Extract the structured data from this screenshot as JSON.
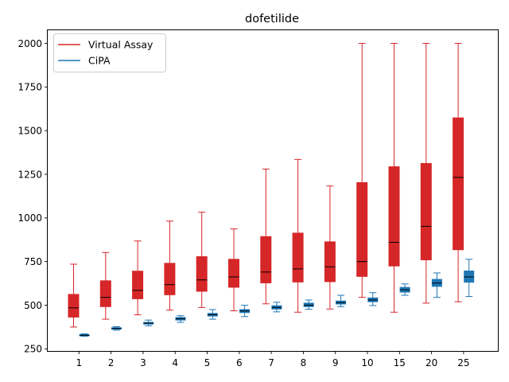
{
  "chart_data": {
    "type": "boxplot",
    "title": "dofetilide",
    "xlabel": "",
    "ylabel": "",
    "categories": [
      "1",
      "2",
      "3",
      "4",
      "5",
      "6",
      "7",
      "8",
      "9",
      "10",
      "15",
      "20",
      "25"
    ],
    "ylim": [
      238,
      2075
    ],
    "yticks": [
      250,
      500,
      750,
      1000,
      1250,
      1500,
      1750,
      2000
    ],
    "grid": false,
    "legend_position": "top-left",
    "series": [
      {
        "name": "Virtual Assay",
        "color": "#d62728",
        "boxes": [
          {
            "min": 375,
            "q1": 432,
            "median": 485,
            "q3": 562,
            "max": 735
          },
          {
            "min": 420,
            "q1": 492,
            "median": 545,
            "q3": 640,
            "max": 802
          },
          {
            "min": 445,
            "q1": 537,
            "median": 585,
            "q3": 695,
            "max": 868
          },
          {
            "min": 472,
            "q1": 560,
            "median": 618,
            "q3": 740,
            "max": 982
          },
          {
            "min": 487,
            "q1": 580,
            "median": 645,
            "q3": 778,
            "max": 1033
          },
          {
            "min": 468,
            "q1": 603,
            "median": 662,
            "q3": 763,
            "max": 937
          },
          {
            "min": 508,
            "q1": 628,
            "median": 690,
            "q3": 893,
            "max": 1280
          },
          {
            "min": 460,
            "q1": 633,
            "median": 708,
            "q3": 913,
            "max": 1335
          },
          {
            "min": 478,
            "q1": 635,
            "median": 720,
            "q3": 863,
            "max": 1183
          },
          {
            "min": 545,
            "q1": 665,
            "median": 750,
            "q3": 1202,
            "max": 2000
          },
          {
            "min": 460,
            "q1": 725,
            "median": 860,
            "q3": 1293,
            "max": 2000
          },
          {
            "min": 512,
            "q1": 760,
            "median": 952,
            "q3": 1312,
            "max": 2000
          },
          {
            "min": 520,
            "q1": 818,
            "median": 1232,
            "q3": 1573,
            "max": 2000
          }
        ]
      },
      {
        "name": "CiPA",
        "color": "#1f77b4",
        "boxes": [
          {
            "min": 322,
            "q1": 325,
            "median": 328,
            "q3": 332,
            "max": 336
          },
          {
            "min": 357,
            "q1": 363,
            "median": 367,
            "q3": 371,
            "max": 377
          },
          {
            "min": 382,
            "q1": 392,
            "median": 397,
            "q3": 402,
            "max": 415
          },
          {
            "min": 402,
            "q1": 415,
            "median": 422,
            "q3": 430,
            "max": 440
          },
          {
            "min": 420,
            "q1": 438,
            "median": 446,
            "q3": 453,
            "max": 475
          },
          {
            "min": 435,
            "q1": 458,
            "median": 467,
            "q3": 475,
            "max": 500
          },
          {
            "min": 462,
            "q1": 478,
            "median": 487,
            "q3": 497,
            "max": 517
          },
          {
            "min": 477,
            "q1": 492,
            "median": 500,
            "q3": 512,
            "max": 530
          },
          {
            "min": 492,
            "q1": 507,
            "median": 515,
            "q3": 524,
            "max": 557
          },
          {
            "min": 498,
            "q1": 520,
            "median": 530,
            "q3": 542,
            "max": 572
          },
          {
            "min": 557,
            "q1": 575,
            "median": 588,
            "q3": 602,
            "max": 622
          },
          {
            "min": 545,
            "q1": 608,
            "median": 627,
            "q3": 648,
            "max": 685
          },
          {
            "min": 550,
            "q1": 632,
            "median": 662,
            "q3": 696,
            "max": 763
          }
        ]
      }
    ]
  }
}
